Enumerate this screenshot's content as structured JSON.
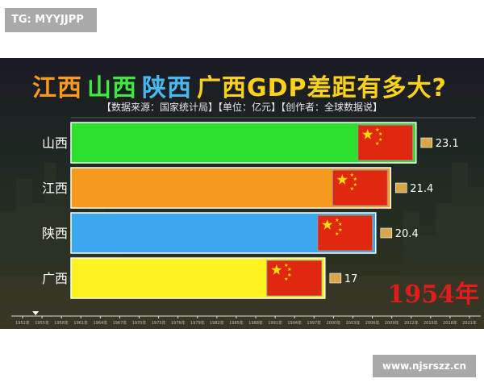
{
  "top_tag": "TG: MYYJJPP",
  "watermark": "www.njsrszz.cn",
  "chart_data": {
    "type": "bar",
    "orientation": "horizontal",
    "title_parts": [
      {
        "text": "江西",
        "color": "#ff9a1a"
      },
      {
        "text": "山西",
        "color": "#3ee83e"
      },
      {
        "text": "陕西",
        "color": "#4ab8f0"
      },
      {
        "text": "广西GDP差距有多大?",
        "color": "#ffd21a"
      }
    ],
    "subtitle": "【数据来源：国家统计局】【单位：亿元】【创作者：全球数据说】",
    "categories": [
      "山西",
      "江西",
      "陕西",
      "广西"
    ],
    "values": [
      23.1,
      21.4,
      20.4,
      17
    ],
    "value_labels": [
      "23.1",
      "21.4",
      "20.4",
      "17"
    ],
    "bar_colors": [
      "#2ee02e",
      "#f59a1e",
      "#3aa8ec",
      "#fff21e"
    ],
    "xlim": [
      0,
      27
    ],
    "current_year": "1954年",
    "timeline_ticks": [
      "1952年",
      "1955年",
      "1958年",
      "1961年",
      "1964年",
      "1967年",
      "1970年",
      "1973年",
      "1976年",
      "1979年",
      "1982年",
      "1985年",
      "1988年",
      "1991年",
      "1994年",
      "1997年",
      "2000年",
      "2003年",
      "2006年",
      "2009年",
      "2012年",
      "2015年",
      "2018年",
      "2021年"
    ],
    "timeline_current_index": 0.67
  }
}
